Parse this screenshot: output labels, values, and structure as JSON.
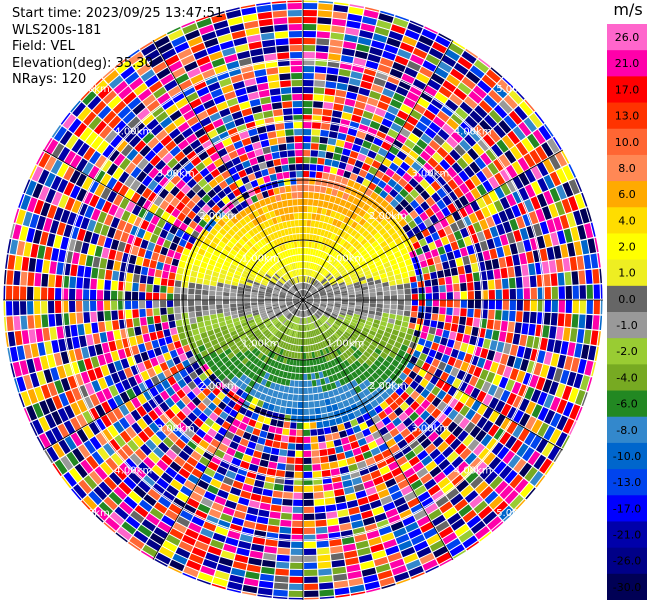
{
  "info": {
    "start_time": "Start time: 2023/09/25 13:47:51",
    "instrument": "WLS200s-181",
    "field": "Field: VEL",
    "elevation": "Elevation(deg): 35.30",
    "nrays": "NRays: 120"
  },
  "chart_data": {
    "type": "heatmap",
    "projection": "polar-ppi",
    "field": "VEL",
    "units": "m/s",
    "nrays": 120,
    "range_rings_km": [
      1.0,
      2.0,
      3.0,
      4.0,
      5.0
    ],
    "range_ring_labels": [
      "1.00km",
      "2.00km",
      "3.00km",
      "4.00km",
      "5.00km"
    ],
    "colorbar": {
      "title": "m/s",
      "ticks": [
        26.0,
        21.0,
        17.0,
        13.0,
        10.0,
        8.0,
        6.0,
        4.0,
        2.0,
        1.0,
        0.0,
        -1.0,
        -2.0,
        -4.0,
        -6.0,
        -8.0,
        -10.0,
        -13.0,
        -17.0,
        -21.0,
        -26.0,
        -30.0
      ],
      "tick_labels": [
        "26.0",
        "21.0",
        "17.0",
        "13.0",
        "10.0",
        "8.0",
        "6.0",
        "4.0",
        "2.0",
        "1.0",
        "0.0",
        "-1.0",
        "-2.0",
        "-4.0",
        "-6.0",
        "-8.0",
        "-10.0",
        "-13.0",
        "-17.0",
        "-21.0",
        "-26.0",
        "-30.0"
      ],
      "colors": [
        "#ff66cc",
        "#ff00aa",
        "#ff0000",
        "#ff3300",
        "#ff6633",
        "#ff8855",
        "#ffaa00",
        "#ffdd00",
        "#ffff00",
        "#eeee22",
        "#666666",
        "#999999",
        "#99cc33",
        "#77aa22",
        "#228822",
        "#3388cc",
        "#0066cc",
        "#0044ee",
        "#0000ff",
        "#0000aa",
        "#000088",
        "#000055"
      ]
    },
    "sector_speeds_m_s": [
      {
        "region": "north-near",
        "velocity": 8.0
      },
      {
        "region": "north-center",
        "velocity": 2.0
      },
      {
        "region": "center-band",
        "velocity": 0.0
      },
      {
        "region": "south-center",
        "velocity": -4.0
      },
      {
        "region": "south-near",
        "velocity": -8.0
      }
    ]
  }
}
